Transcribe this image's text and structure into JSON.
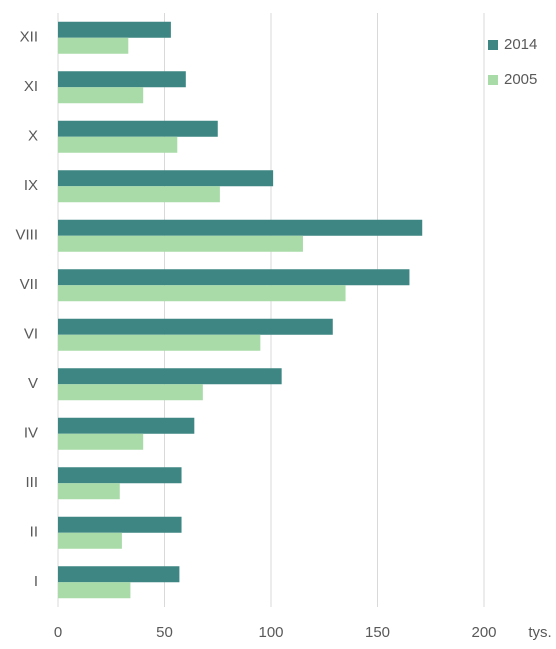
{
  "chart_data": {
    "type": "bar",
    "orientation": "horizontal",
    "categories": [
      "I",
      "II",
      "III",
      "IV",
      "V",
      "VI",
      "VII",
      "VIII",
      "IX",
      "X",
      "XI",
      "XII"
    ],
    "series": [
      {
        "name": "2014",
        "color": "#3d8684",
        "values": [
          57,
          58,
          58,
          64,
          105,
          129,
          165,
          171,
          101,
          75,
          60,
          53
        ]
      },
      {
        "name": "2005",
        "color": "#a8dba8",
        "values": [
          34,
          30,
          29,
          40,
          68,
          95,
          135,
          115,
          76,
          56,
          40,
          33
        ]
      }
    ],
    "xlabel": "tys.",
    "xlim": [
      0,
      200
    ],
    "xticks": [
      0,
      50,
      100,
      150,
      200
    ],
    "grid": true,
    "legend": "top-right"
  }
}
